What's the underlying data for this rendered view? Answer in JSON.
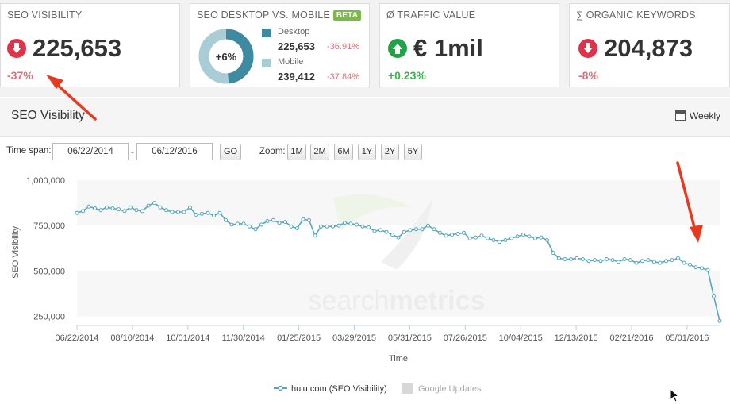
{
  "cards": {
    "seo_visibility": {
      "title": "SEO VISIBILITY",
      "value": "225,653",
      "delta": "-37%"
    },
    "desktop_mobile": {
      "title": "SEO DESKTOP VS. MOBILE",
      "badge": "BETA",
      "donut_label": "+6%",
      "desktop_label": "Desktop",
      "desktop_value": "225,653",
      "desktop_delta": "-36.91%",
      "mobile_label": "Mobile",
      "mobile_value": "239,412",
      "mobile_delta": "-37.84%",
      "desktop_color": "#3e8aa0",
      "mobile_color": "#a9ccd6"
    },
    "traffic_value": {
      "title": "Ø TRAFFIC VALUE",
      "value": "€ 1mil",
      "delta": "+0.23%"
    },
    "organic_keywords": {
      "title": "∑ ORGANIC KEYWORDS",
      "value": "204,873",
      "delta": "-8%"
    }
  },
  "section": {
    "title": "SEO Visibility",
    "weekly": "Weekly"
  },
  "controls": {
    "time_span_label": "Time span:",
    "start_date": "06/22/2014",
    "separator": "-",
    "end_date": "06/12/2016",
    "go": "GO",
    "zoom_label": "Zoom:",
    "zoom_options": [
      "1M",
      "2M",
      "6M",
      "1Y",
      "2Y",
      "5Y"
    ]
  },
  "chart_data": {
    "type": "line",
    "ylabel": "SEO Visibility",
    "xlabel": "Time",
    "watermark_a": "search",
    "watermark_b": "metrics",
    "yticks": [
      "1,000,000",
      "750,000",
      "500,000",
      "250,000"
    ],
    "ytick_values": [
      1000000,
      750000,
      500000,
      250000
    ],
    "ylim": [
      200000,
      1000000
    ],
    "xticks": [
      "06/22/2014",
      "08/10/2014",
      "10/01/2014",
      "11/30/2014",
      "01/25/2015",
      "03/29/2015",
      "05/31/2015",
      "07/26/2015",
      "10/04/2015",
      "12/13/2015",
      "02/21/2016",
      "05/01/2016"
    ],
    "series": [
      {
        "name": "hulu.com (SEO Visibility)",
        "color": "#55a7bd",
        "values": [
          820000,
          830000,
          855000,
          845000,
          835000,
          850000,
          845000,
          840000,
          830000,
          850000,
          835000,
          830000,
          860000,
          875000,
          850000,
          835000,
          825000,
          825000,
          825000,
          850000,
          810000,
          815000,
          820000,
          805000,
          820000,
          780000,
          755000,
          760000,
          760000,
          745000,
          730000,
          755000,
          775000,
          780000,
          765000,
          770000,
          745000,
          735000,
          785000,
          780000,
          695000,
          745000,
          745000,
          745000,
          750000,
          765000,
          760000,
          755000,
          745000,
          740000,
          720000,
          725000,
          715000,
          700000,
          685000,
          715000,
          725000,
          730000,
          730000,
          750000,
          730000,
          710000,
          695000,
          700000,
          705000,
          710000,
          680000,
          685000,
          695000,
          680000,
          670000,
          660000,
          670000,
          680000,
          690000,
          700000,
          690000,
          680000,
          685000,
          670000,
          600000,
          570000,
          565000,
          565000,
          570000,
          565000,
          555000,
          560000,
          555000,
          565000,
          560000,
          550000,
          565000,
          560000,
          545000,
          555000,
          560000,
          550000,
          545000,
          555000,
          560000,
          570000,
          545000,
          535000,
          520000,
          515000,
          505000,
          360000,
          225000
        ]
      }
    ],
    "legend": [
      "hulu.com (SEO Visibility)",
      "Google Updates"
    ],
    "legend_google_color": "#d8d8d8"
  }
}
